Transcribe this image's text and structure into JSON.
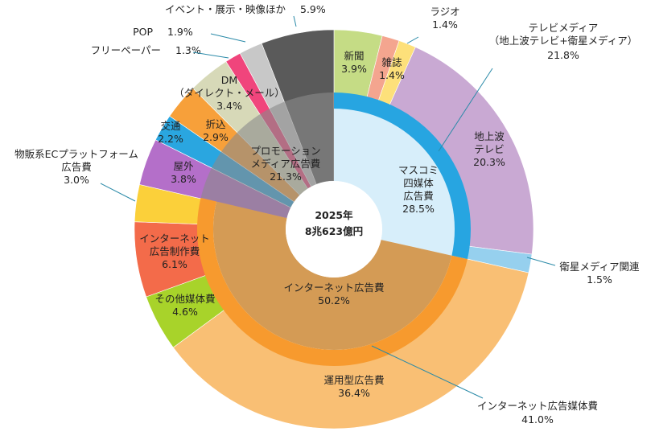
{
  "chart_data": {
    "type": "nested-donut",
    "center_label": [
      "2025年",
      "8兆623億円"
    ],
    "inner": {
      "categories": [
        "マスコミ\n四媒体\n広告費",
        "インターネット広告費",
        "プロモーション\nメディア広告費"
      ],
      "values": [
        28.5,
        50.2,
        21.3
      ],
      "value_labels": [
        "28.5%",
        "50.2%",
        "21.3%"
      ],
      "colors": [
        "#d7eefa",
        "#d49b55",
        "#8a8a8a"
      ],
      "edge_colors": [
        "#27a5e1",
        "#f79a2e",
        null
      ]
    },
    "outer": {
      "categories": [
        "新聞",
        "雑誌",
        "ラジオ",
        "地上波\nテレビ",
        "衛星メディア関連",
        "運用型広告費",
        "その他媒体費",
        "インターネット\n広告制作費",
        "物販系ECプラットフォーム\n広告費",
        "屋外",
        "交通",
        "折込",
        "DM\n（ダイレクト・メール）",
        "フリーペーパー",
        "POP",
        "イベント・展示・映像ほか"
      ],
      "values": [
        3.9,
        1.4,
        1.4,
        20.3,
        1.5,
        36.4,
        4.6,
        6.1,
        3.0,
        3.8,
        2.2,
        2.9,
        3.4,
        1.3,
        1.9,
        5.9
      ],
      "value_labels": [
        "3.9%",
        "1.4%",
        "1.4%",
        "20.3%",
        "1.5%",
        "36.4%",
        "4.6%",
        "6.1%",
        "3.0%",
        "3.8%",
        "2.2%",
        "2.9%",
        "3.4%",
        "1.3%",
        "1.9%",
        "5.9%"
      ],
      "colors": [
        "#c5dc85",
        "#f4a58f",
        "#fde07a",
        "#c9a9d3",
        "#96d0ee",
        "#f9bf74",
        "#a8d32a",
        "#f36b4a",
        "#fbd03a",
        "#b46fc9",
        "#2aa6e0",
        "#f7a03a",
        "#d7d9b8",
        "#f0457c",
        "#c8c8c8",
        "#5a5a5a"
      ]
    },
    "annotations": [
      {
        "text": "テレビメディア\n（地上波テレビ+衛星メディア）",
        "value": 21.8,
        "value_label": "21.8%"
      },
      {
        "text": "インターネット広告媒体費",
        "value": 41.0,
        "value_label": "41.0%"
      }
    ]
  }
}
